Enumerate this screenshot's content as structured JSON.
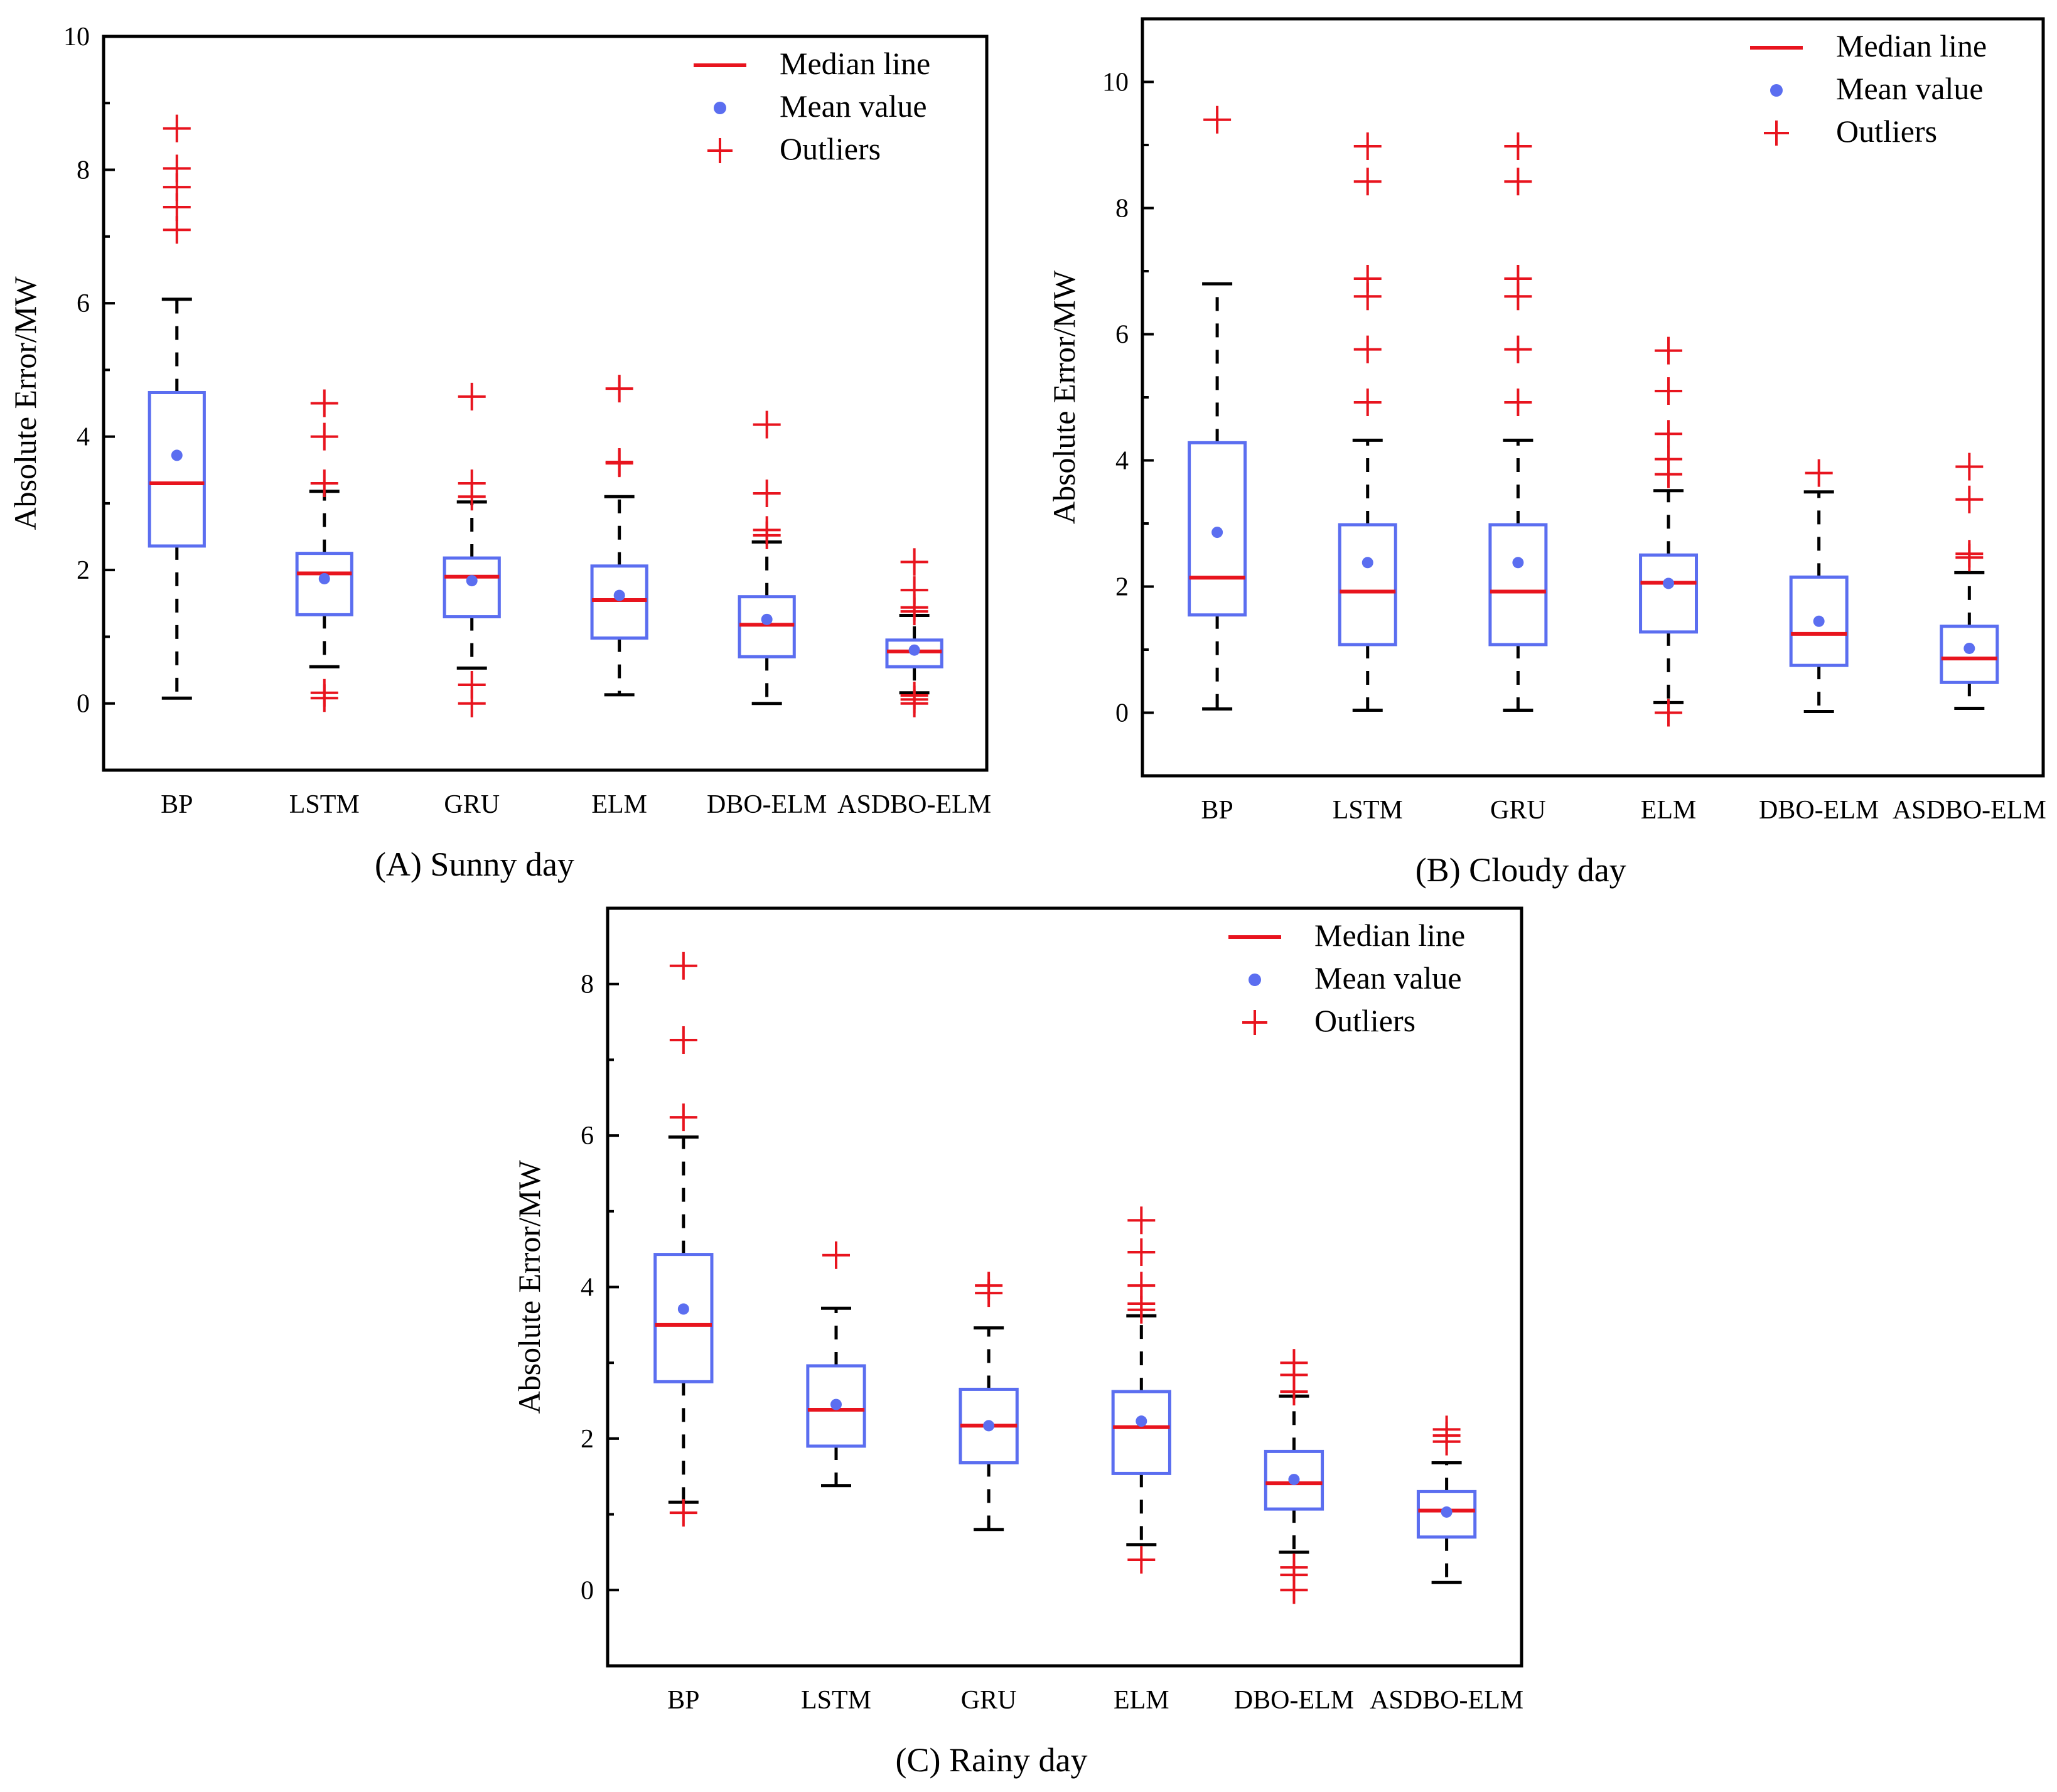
{
  "chart_data": [
    {
      "type": "box",
      "title": "(A) Sunny day",
      "xlabel": "",
      "ylabel": "Absolute Error/MW",
      "ylim": [
        -1,
        10
      ],
      "yticks": [
        0,
        2,
        4,
        6,
        8,
        10
      ],
      "categories": [
        "BP",
        "LSTM",
        "GRU",
        "ELM",
        "DBO-ELM",
        "ASDBO-ELM"
      ],
      "legend": {
        "position": "top-right",
        "median_label": "Median line",
        "mean_label": "Mean value",
        "outlier_label": "Outliers"
      },
      "series": [
        {
          "name": "BP",
          "whisker_low": 0.08,
          "q1": 2.36,
          "median": 3.3,
          "q3": 4.66,
          "whisker_high": 6.06,
          "mean": 3.72,
          "outliers": [
            7.1,
            7.44,
            7.74,
            8.02,
            8.62
          ]
        },
        {
          "name": "LSTM",
          "whisker_low": 0.55,
          "q1": 1.33,
          "median": 1.95,
          "q3": 2.25,
          "whisker_high": 3.18,
          "mean": 1.87,
          "outliers": [
            0.08,
            0.16,
            3.3,
            4.0,
            4.5
          ]
        },
        {
          "name": "GRU",
          "whisker_low": 0.53,
          "q1": 1.3,
          "median": 1.9,
          "q3": 2.18,
          "whisker_high": 3.02,
          "mean": 1.84,
          "outliers": [
            0.0,
            0.28,
            3.1,
            3.3,
            4.6
          ]
        },
        {
          "name": "ELM",
          "whisker_low": 0.13,
          "q1": 0.98,
          "median": 1.55,
          "q3": 2.06,
          "whisker_high": 3.1,
          "mean": 1.62,
          "outliers": [
            3.6,
            3.62,
            4.72
          ]
        },
        {
          "name": "DBO-ELM",
          "whisker_low": 0.0,
          "q1": 0.7,
          "median": 1.18,
          "q3": 1.6,
          "whisker_high": 2.42,
          "mean": 1.26,
          "outliers": [
            2.52,
            2.6,
            3.15,
            4.18
          ]
        },
        {
          "name": "ASDBO-ELM",
          "whisker_low": 0.16,
          "q1": 0.55,
          "median": 0.78,
          "q3": 0.95,
          "whisker_high": 1.32,
          "mean": 0.8,
          "outliers": [
            0.0,
            0.06,
            0.12,
            1.38,
            1.44,
            1.7,
            2.12
          ]
        }
      ]
    },
    {
      "type": "box",
      "title": "(B) Cloudy day",
      "xlabel": "",
      "ylabel": "Absolute Error/MW",
      "ylim": [
        -1,
        11
      ],
      "yticks": [
        0,
        2,
        4,
        6,
        8,
        10
      ],
      "categories": [
        "BP",
        "LSTM",
        "GRU",
        "ELM",
        "DBO-ELM",
        "ASDBO-ELM"
      ],
      "legend": {
        "position": "top-right",
        "median_label": "Median line",
        "mean_label": "Mean value",
        "outlier_label": "Outliers"
      },
      "series": [
        {
          "name": "BP",
          "whisker_low": 0.06,
          "q1": 1.55,
          "median": 2.14,
          "q3": 4.28,
          "whisker_high": 6.8,
          "mean": 2.86,
          "outliers": [
            9.4
          ]
        },
        {
          "name": "LSTM",
          "whisker_low": 0.04,
          "q1": 1.08,
          "median": 1.92,
          "q3": 2.98,
          "whisker_high": 4.32,
          "mean": 2.38,
          "outliers": [
            4.92,
            5.76,
            6.6,
            6.88,
            8.42,
            8.98
          ]
        },
        {
          "name": "GRU",
          "whisker_low": 0.04,
          "q1": 1.08,
          "median": 1.92,
          "q3": 2.98,
          "whisker_high": 4.32,
          "mean": 2.38,
          "outliers": [
            4.92,
            5.76,
            6.6,
            6.88,
            8.42,
            8.98
          ]
        },
        {
          "name": "ELM",
          "whisker_low": 0.16,
          "q1": 1.28,
          "median": 2.06,
          "q3": 2.5,
          "whisker_high": 3.52,
          "mean": 2.05,
          "outliers": [
            0.0,
            3.78,
            4.02,
            4.42,
            5.1,
            5.74
          ]
        },
        {
          "name": "DBO-ELM",
          "whisker_low": 0.02,
          "q1": 0.75,
          "median": 1.25,
          "q3": 2.15,
          "whisker_high": 3.5,
          "mean": 1.45,
          "outliers": [
            3.8
          ]
        },
        {
          "name": "ASDBO-ELM",
          "whisker_low": 0.07,
          "q1": 0.48,
          "median": 0.86,
          "q3": 1.37,
          "whisker_high": 2.22,
          "mean": 1.02,
          "outliers": [
            2.46,
            2.52,
            3.38,
            3.9
          ]
        }
      ]
    },
    {
      "type": "box",
      "title": "(C) Rainy day",
      "xlabel": "",
      "ylabel": "Absolute Error/MW",
      "ylim": [
        -1,
        9
      ],
      "yticks": [
        0,
        2,
        4,
        6,
        8
      ],
      "categories": [
        "BP",
        "LSTM",
        "GRU",
        "ELM",
        "DBO-ELM",
        "ASDBO-ELM"
      ],
      "legend": {
        "position": "top-right",
        "median_label": "Median line",
        "mean_label": "Mean value",
        "outlier_label": "Outliers"
      },
      "series": [
        {
          "name": "BP",
          "whisker_low": 1.16,
          "q1": 2.75,
          "median": 3.5,
          "q3": 4.43,
          "whisker_high": 5.98,
          "mean": 3.71,
          "outliers": [
            1.02,
            6.24,
            7.26,
            8.24
          ]
        },
        {
          "name": "LSTM",
          "whisker_low": 1.38,
          "q1": 1.9,
          "median": 2.38,
          "q3": 2.96,
          "whisker_high": 3.72,
          "mean": 2.45,
          "outliers": [
            4.42
          ]
        },
        {
          "name": "GRU",
          "whisker_low": 0.8,
          "q1": 1.68,
          "median": 2.17,
          "q3": 2.65,
          "whisker_high": 3.46,
          "mean": 2.17,
          "outliers": [
            3.92,
            4.02
          ]
        },
        {
          "name": "ELM",
          "whisker_low": 0.6,
          "q1": 1.54,
          "median": 2.15,
          "q3": 2.62,
          "whisker_high": 3.62,
          "mean": 2.23,
          "outliers": [
            0.4,
            3.7,
            3.78,
            4.02,
            4.46,
            4.88
          ]
        },
        {
          "name": "DBO-ELM",
          "whisker_low": 0.5,
          "q1": 1.07,
          "median": 1.41,
          "q3": 1.83,
          "whisker_high": 2.56,
          "mean": 1.46,
          "outliers": [
            0.0,
            0.2,
            0.3,
            2.62,
            2.84,
            3.0
          ]
        },
        {
          "name": "ASDBO-ELM",
          "whisker_low": 0.1,
          "q1": 0.7,
          "median": 1.05,
          "q3": 1.3,
          "whisker_high": 1.68,
          "mean": 1.03,
          "outliers": [
            1.96,
            2.04,
            2.12
          ]
        }
      ]
    }
  ],
  "colors": {
    "box": "#5b6ef0",
    "median": "#e8141e",
    "mean": "#5b6ef0",
    "outlier": "#e8141e",
    "whisker": "#000000",
    "axis": "#000000"
  }
}
